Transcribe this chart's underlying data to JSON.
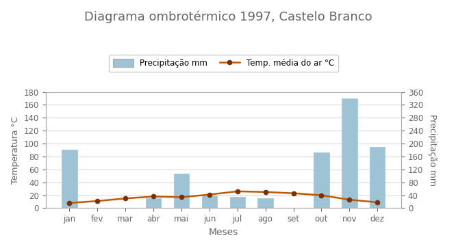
{
  "title": "Diagrama ombrotérmico 1997, Castelo Branco",
  "months": [
    "jan",
    "fev",
    "mar",
    "abr",
    "mai",
    "jun",
    "jul",
    "ago",
    "set",
    "out",
    "nov",
    "dez"
  ],
  "precipitation": [
    91,
    0,
    0,
    15,
    53,
    20,
    17,
    15,
    0,
    86,
    170,
    95
  ],
  "temperature": [
    8,
    11,
    15,
    18,
    17,
    21,
    26,
    25,
    23,
    20,
    13,
    9
  ],
  "bar_color": "#9DC3D4",
  "bar_edgecolor": "#9DC3D4",
  "line_color": "#C05A00",
  "line_marker": "o",
  "marker_color": "#7B3000",
  "marker_size": 4.5,
  "line_width": 1.8,
  "xlabel": "Meses",
  "ylabel_left": "Temperatura °C",
  "ylabel_right": "Precipitação mm",
  "legend_bar": "Precipitação mm",
  "legend_line": "Temp. média do ar °C",
  "ylim_left": [
    0,
    180
  ],
  "ylim_right": [
    0,
    360
  ],
  "yticks_left": [
    0,
    20,
    40,
    60,
    80,
    100,
    120,
    140,
    160,
    180
  ],
  "yticks_right": [
    0,
    40,
    80,
    120,
    160,
    200,
    240,
    280,
    320,
    360
  ],
  "title_fontsize": 13,
  "axis_fontsize": 9,
  "tick_fontsize": 8.5,
  "legend_fontsize": 8.5,
  "background_color": "#ffffff",
  "grid_color": "#cccccc",
  "bar_width": 0.55,
  "text_color": "#666666"
}
